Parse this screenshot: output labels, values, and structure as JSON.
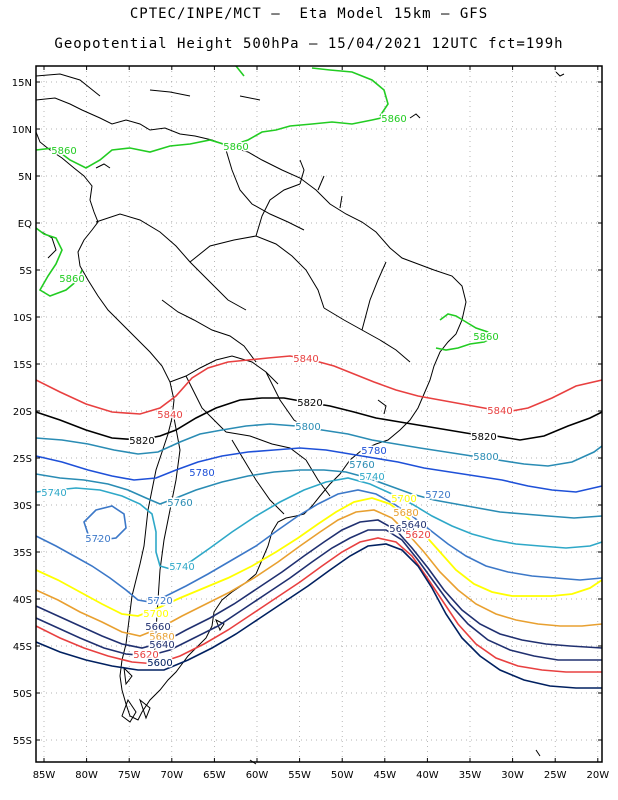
{
  "title_line1": "CPTEC/INPE/MCT –  Eta Model 15km – GFS",
  "title_line2": "Geopotential Height 500hPa – 15/04/2021 12UTC fct=199h",
  "lat_labels": [
    "15N",
    "10N",
    "5N",
    "EQ",
    "5S",
    "10S",
    "15S",
    "20S",
    "25S",
    "30S",
    "35S",
    "40S",
    "45S",
    "50S",
    "55S"
  ],
  "lon_labels": [
    "85W",
    "80W",
    "75W",
    "70W",
    "65W",
    "60W",
    "55W",
    "50W",
    "45W",
    "40W",
    "35W",
    "30W",
    "25W",
    "20W"
  ],
  "contour_colors": {
    "5860": "#22cc22",
    "5840": "#e84040",
    "5820": "#000000",
    "5800": "#2a8cb4",
    "5780": "#1e50d8",
    "5760": "#2a8cb4",
    "5740": "#2ea8c8",
    "5720": "#3c78c8",
    "5700": "#ffff00",
    "5680": "#e8a030",
    "5660": "#203070",
    "5640": "#203070",
    "5620": "#e84040",
    "5600": "#002060"
  },
  "contour_labels": [
    {
      "text": "5860",
      "contour": "5860"
    },
    {
      "text": "5860",
      "contour": "5860"
    },
    {
      "text": "5860",
      "contour": "5860"
    },
    {
      "text": "5860",
      "contour": "5860"
    },
    {
      "text": "5860",
      "contour": "5860"
    },
    {
      "text": "5840",
      "contour": "5840"
    },
    {
      "text": "5840",
      "contour": "5840"
    },
    {
      "text": "5840",
      "contour": "5840"
    },
    {
      "text": "5820",
      "contour": "5820"
    },
    {
      "text": "5820",
      "contour": "5820"
    },
    {
      "text": "5820",
      "contour": "5820"
    },
    {
      "text": "5800",
      "contour": "5800"
    },
    {
      "text": "5800",
      "contour": "5800"
    },
    {
      "text": "5780",
      "contour": "5780"
    },
    {
      "text": "5780",
      "contour": "5780"
    },
    {
      "text": "5760",
      "contour": "5760"
    },
    {
      "text": "5760",
      "contour": "5760"
    },
    {
      "text": "5740",
      "contour": "5740"
    },
    {
      "text": "5740",
      "contour": "5740"
    },
    {
      "text": "5740",
      "contour": "5740"
    },
    {
      "text": "5720",
      "contour": "5720"
    },
    {
      "text": "5720",
      "contour": "5720"
    },
    {
      "text": "5720",
      "contour": "5720"
    },
    {
      "text": "5700",
      "contour": "5700"
    },
    {
      "text": "5700",
      "contour": "5700"
    },
    {
      "text": "5680",
      "contour": "5680"
    },
    {
      "text": "5680",
      "contour": "5680"
    },
    {
      "text": "5660",
      "contour": "5660"
    },
    {
      "text": "5660",
      "contour": "5660"
    },
    {
      "text": "5640",
      "contour": "5640"
    },
    {
      "text": "5640",
      "contour": "5640"
    },
    {
      "text": "5620",
      "contour": "5620"
    },
    {
      "text": "5620",
      "contour": "5620"
    },
    {
      "text": "5600",
      "contour": "5600"
    }
  ]
}
